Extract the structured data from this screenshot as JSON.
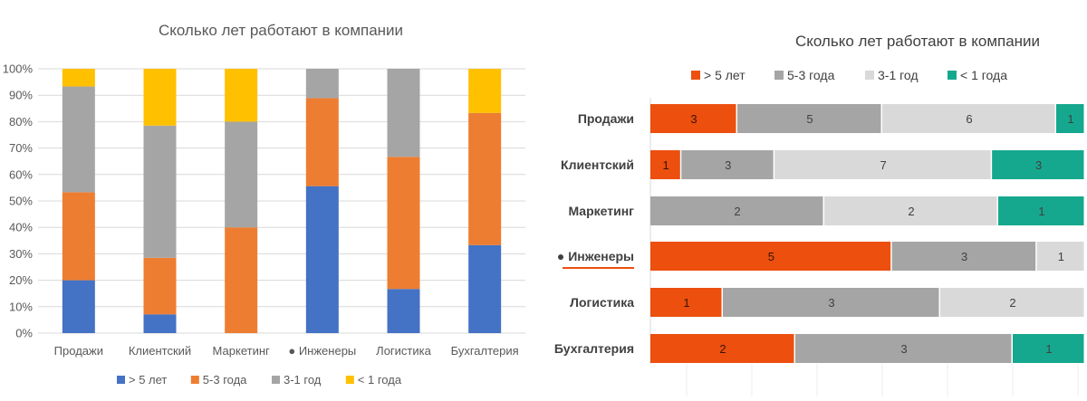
{
  "chart_data": [
    {
      "type": "bar",
      "stacked": true,
      "normalized": true,
      "orientation": "vertical",
      "title": "Сколько лет работают в компании",
      "categories": [
        "Продажи",
        "Клиентский",
        "Маркетинг",
        "● Инженеры",
        "Логистика",
        "Бухгалтерия"
      ],
      "yticks": [
        "0%",
        "10%",
        "20%",
        "30%",
        "40%",
        "50%",
        "60%",
        "70%",
        "80%",
        "90%",
        "100%"
      ],
      "ylim": [
        0,
        100
      ],
      "legend_position": "bottom",
      "series": [
        {
          "name": "> 5 лет",
          "color": "#4472C4",
          "values": [
            20,
            7.1,
            0,
            55.6,
            16.7,
            33.3
          ]
        },
        {
          "name": "5-3 года",
          "color": "#ED7D31",
          "values": [
            33.3,
            21.4,
            40,
            33.3,
            50,
            50
          ]
        },
        {
          "name": "3-1 год",
          "color": "#A5A5A5",
          "values": [
            40,
            50,
            40,
            11.1,
            33.3,
            0
          ]
        },
        {
          "name": "< 1 года",
          "color": "#FFC000",
          "values": [
            6.7,
            21.5,
            20,
            0,
            0,
            16.7
          ]
        }
      ]
    },
    {
      "type": "bar",
      "stacked": true,
      "normalized": true,
      "orientation": "horizontal",
      "title": "Сколько лет работают в компании",
      "categories": [
        "Продажи",
        "Клиентский",
        "Маркетинг",
        "● Инженеры",
        "Логистика",
        "Бухгалтерия"
      ],
      "highlight_category": "● Инженеры",
      "legend_position": "top",
      "series": [
        {
          "name": "> 5 лет",
          "color": "#EC4F0E",
          "values": [
            3,
            1,
            0,
            5,
            1,
            2
          ]
        },
        {
          "name": "5-3 года",
          "color": "#A5A5A5",
          "values": [
            5,
            3,
            2,
            3,
            3,
            3
          ]
        },
        {
          "name": "3-1 год",
          "color": "#D9D9D9",
          "values": [
            6,
            7,
            2,
            1,
            2,
            0
          ]
        },
        {
          "name": "< 1 года",
          "color": "#16A88E",
          "values": [
            1,
            3,
            1,
            0,
            0,
            1
          ]
        }
      ]
    }
  ]
}
